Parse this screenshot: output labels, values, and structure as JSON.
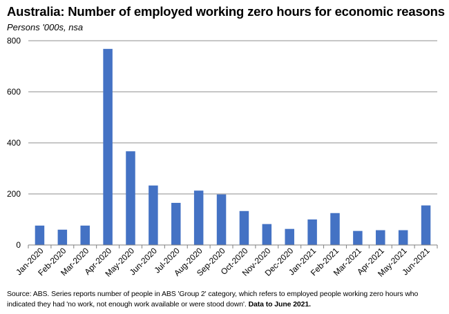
{
  "header": {
    "title": "Australia: Number of employed working zero hours for economic reasons",
    "subtitle": "Persons '000s, nsa"
  },
  "colors": {
    "bar": "#4472C4",
    "grid": "#8c8c8c",
    "axis": "#7f7f7f",
    "text": "#000000"
  },
  "footer": {
    "source_text": "Source: ABS.  Series reports number of people in ABS 'Group 2' category, which  refers to employed people working zero hours who indicated they had 'no work, not enough work available or were stood down'.",
    "source_bold": "Data to June 2021."
  },
  "chart_data": {
    "type": "bar",
    "title": "Australia: Number of employed working zero hours for economic reasons",
    "subtitle": "Persons '000s, nsa",
    "xlabel": "",
    "ylabel": "",
    "ylim": [
      0,
      800
    ],
    "yticks": [
      0,
      200,
      400,
      600,
      800
    ],
    "grid": true,
    "categories": [
      "Jan-2020",
      "Feb-2020",
      "Mar-2020",
      "Apr-2020",
      "May-2020",
      "Jun-2020",
      "Jul-2020",
      "Aug-2020",
      "Sep-2020",
      "Oct-2020",
      "Nov-2020",
      "Dec-2020",
      "Jan-2021",
      "Feb-2021",
      "Mar-2021",
      "Apr-2021",
      "May-2021",
      "Jun-2021"
    ],
    "values": [
      76,
      60,
      76,
      768,
      367,
      233,
      165,
      213,
      198,
      133,
      82,
      63,
      100,
      125,
      55,
      58,
      58,
      155
    ]
  }
}
